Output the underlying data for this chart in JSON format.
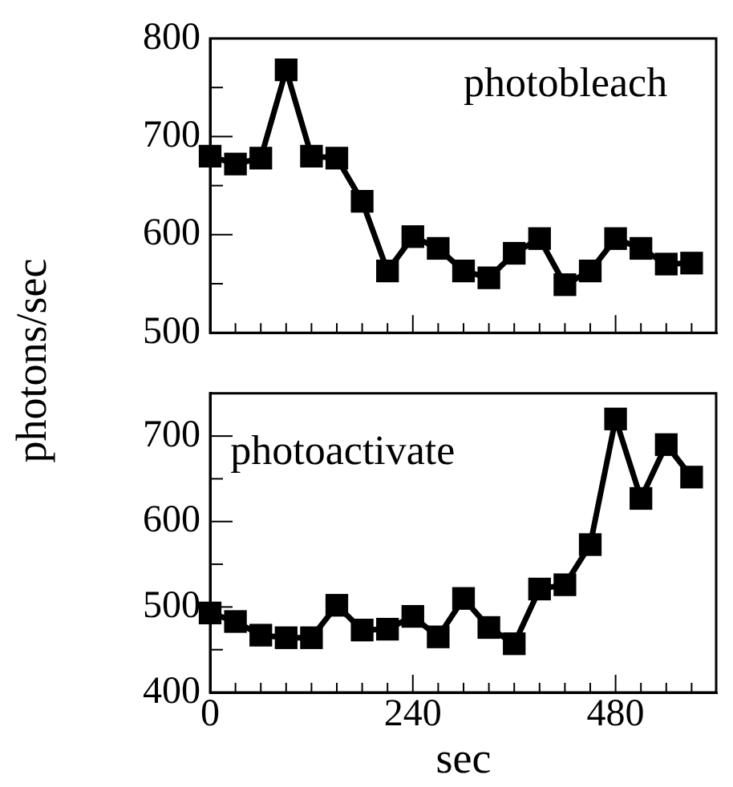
{
  "chart_data": [
    {
      "type": "line",
      "ylabel": "photons/sec",
      "annotations": [
        "photobleach"
      ],
      "marker": "square",
      "line_style": "solid",
      "grid": false,
      "legend": false,
      "tick_labels": "y",
      "x": [
        0,
        30,
        60,
        90,
        120,
        150,
        180,
        210,
        240,
        270,
        300,
        330,
        360,
        390,
        420,
        450,
        480,
        510,
        540,
        570
      ],
      "series": [
        {
          "color": "#000000",
          "values": [
            680,
            672,
            678,
            768,
            680,
            678,
            634,
            563,
            598,
            586,
            563,
            556,
            581,
            596,
            549,
            563,
            596,
            586,
            570,
            571
          ]
        }
      ],
      "xlim": [
        0,
        600
      ],
      "xticks": [
        0,
        {
          "value": 30,
          "label": null
        },
        {
          "value": 60,
          "label": null
        },
        {
          "value": 90,
          "label": null
        },
        {
          "value": 120,
          "label": null
        },
        {
          "value": 150,
          "label": null
        },
        {
          "value": 180,
          "label": null
        },
        {
          "value": 210,
          "label": null
        },
        240,
        {
          "value": 270,
          "label": null
        },
        {
          "value": 300,
          "label": null
        },
        {
          "value": 330,
          "label": null
        },
        {
          "value": 360,
          "label": null
        },
        {
          "value": 390,
          "label": null
        },
        {
          "value": 420,
          "label": null
        },
        {
          "value": 450,
          "label": null
        },
        480,
        {
          "value": 510,
          "label": null
        },
        {
          "value": 540,
          "label": null
        },
        {
          "value": 570,
          "label": null
        }
      ],
      "ylim": [
        500,
        800
      ],
      "yticks": [
        500,
        {
          "value": 550,
          "label": null
        },
        600,
        {
          "value": 650,
          "label": null
        },
        700,
        {
          "value": 750,
          "label": null
        },
        800
      ]
    },
    {
      "type": "line",
      "xlabel": "sec",
      "annotations": [
        "photoactivate"
      ],
      "marker": "square",
      "line_style": "solid",
      "grid": false,
      "legend": false,
      "x": [
        0,
        30,
        60,
        90,
        120,
        150,
        180,
        210,
        240,
        270,
        300,
        330,
        360,
        390,
        420,
        450,
        480,
        510,
        540,
        570
      ],
      "series": [
        {
          "color": "#000000",
          "values": [
            493,
            483,
            467,
            464,
            464,
            502,
            473,
            474,
            489,
            465,
            510,
            476,
            457,
            521,
            526,
            573,
            720,
            627,
            690,
            652
          ]
        }
      ],
      "xlim": [
        0,
        600
      ],
      "xticks": [
        0,
        {
          "value": 30,
          "label": null
        },
        {
          "value": 60,
          "label": null
        },
        {
          "value": 90,
          "label": null
        },
        {
          "value": 120,
          "label": null
        },
        {
          "value": 150,
          "label": null
        },
        {
          "value": 180,
          "label": null
        },
        {
          "value": 210,
          "label": null
        },
        240,
        {
          "value": 270,
          "label": null
        },
        {
          "value": 300,
          "label": null
        },
        {
          "value": 330,
          "label": null
        },
        {
          "value": 360,
          "label": null
        },
        {
          "value": 390,
          "label": null
        },
        {
          "value": 420,
          "label": null
        },
        {
          "value": 450,
          "label": null
        },
        480,
        {
          "value": 510,
          "label": null
        },
        {
          "value": 540,
          "label": null
        },
        {
          "value": 570,
          "label": null
        }
      ],
      "ylim": [
        400,
        750
      ],
      "yticks": [
        400,
        {
          "value": 450,
          "label": null
        },
        500,
        {
          "value": 550,
          "label": null
        },
        600,
        {
          "value": 650,
          "label": null
        },
        700
      ]
    }
  ]
}
